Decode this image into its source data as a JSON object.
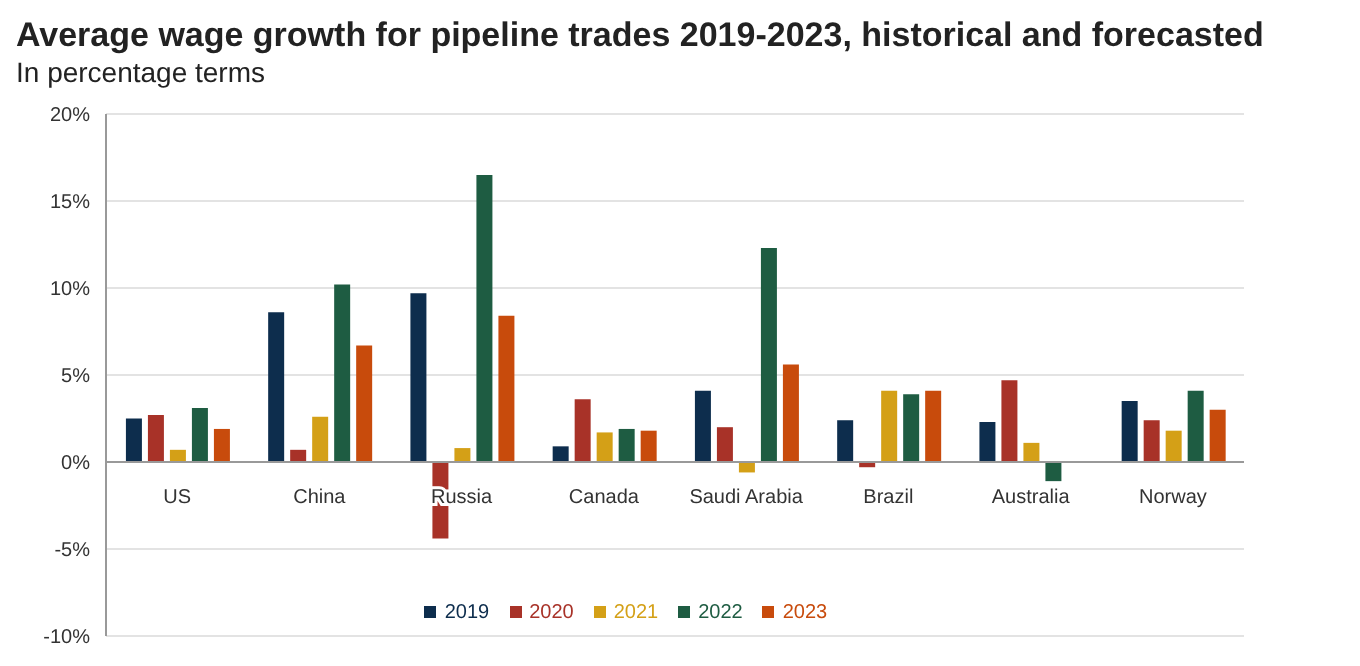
{
  "chart_data": {
    "type": "bar",
    "title": "Average wage growth for pipeline trades 2019-2023, historical and forecasted",
    "subtitle": "In percentage terms",
    "categories": [
      "US",
      "China",
      "Russia",
      "Canada",
      "Saudi Arabia",
      "Brazil",
      "Australia",
      "Norway"
    ],
    "series": [
      {
        "name": "2019",
        "color": "#0d2d4d",
        "values": [
          2.5,
          8.6,
          9.7,
          0.9,
          4.1,
          2.4,
          2.3,
          3.5
        ]
      },
      {
        "name": "2020",
        "color": "#a83228",
        "values": [
          2.7,
          0.7,
          -4.4,
          3.6,
          2.0,
          -0.3,
          4.7,
          2.4
        ]
      },
      {
        "name": "2021",
        "color": "#d4a017",
        "values": [
          0.7,
          2.6,
          0.8,
          1.7,
          -0.6,
          4.1,
          1.1,
          1.8
        ]
      },
      {
        "name": "2022",
        "color": "#1e5c42",
        "values": [
          3.1,
          10.2,
          16.5,
          1.9,
          12.3,
          3.9,
          -1.1,
          4.1
        ]
      },
      {
        "name": "2023",
        "color": "#c84b0c",
        "values": [
          1.9,
          6.7,
          8.4,
          1.8,
          5.6,
          4.1,
          0,
          3.0
        ]
      }
    ],
    "ylim": [
      -10,
      20
    ],
    "yticks": [
      {
        "value": -10,
        "label": "-10%"
      },
      {
        "value": -5,
        "label": "-5%"
      },
      {
        "value": 0,
        "label": "0%"
      },
      {
        "value": 5,
        "label": "5%"
      },
      {
        "value": 10,
        "label": "10%"
      },
      {
        "value": 15,
        "label": "15%"
      },
      {
        "value": 20,
        "label": "20%"
      }
    ],
    "grid": "y",
    "legend": "bottom"
  }
}
